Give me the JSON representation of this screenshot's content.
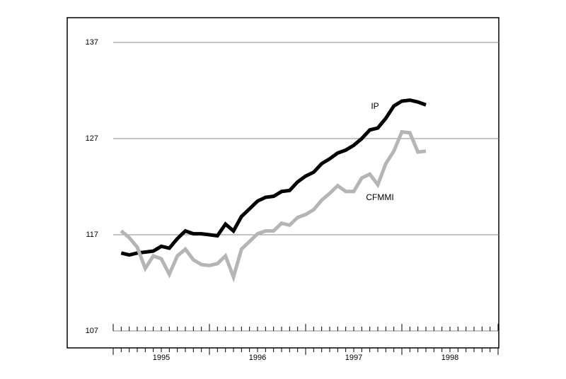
{
  "chart_data": {
    "type": "line",
    "x": [
      1995.083,
      1995.167,
      1995.25,
      1995.333,
      1995.417,
      1995.5,
      1995.583,
      1995.667,
      1995.75,
      1995.833,
      1995.917,
      1996.0,
      1996.083,
      1996.167,
      1996.25,
      1996.333,
      1996.417,
      1996.5,
      1996.583,
      1996.667,
      1996.75,
      1996.833,
      1996.917,
      1997.0,
      1997.083,
      1997.167,
      1997.25,
      1997.333,
      1997.417,
      1997.5,
      1997.583,
      1997.667,
      1997.75,
      1997.833,
      1997.917,
      1998.0,
      1998.083,
      1998.167,
      1998.25
    ],
    "series": [
      {
        "name": "IP",
        "color": "#000000",
        "values": [
          115.1,
          114.9,
          115.1,
          115.2,
          115.3,
          115.8,
          115.6,
          116.6,
          117.4,
          117.1,
          117.1,
          117.0,
          116.9,
          118.1,
          117.4,
          118.9,
          119.7,
          120.5,
          120.9,
          121.0,
          121.5,
          121.6,
          122.5,
          123.1,
          123.5,
          124.4,
          124.9,
          125.5,
          125.8,
          126.3,
          127.0,
          127.9,
          128.1,
          129.1,
          130.4,
          130.9,
          131.0,
          130.8,
          130.5
        ]
      },
      {
        "name": "CFMMI",
        "color": "#b5b5b5",
        "values": [
          117.4,
          116.7,
          115.7,
          113.5,
          114.8,
          114.5,
          112.9,
          114.8,
          115.5,
          114.4,
          113.9,
          113.8,
          114.0,
          114.8,
          112.6,
          115.5,
          116.3,
          117.1,
          117.4,
          117.4,
          118.2,
          118.0,
          118.8,
          119.1,
          119.6,
          120.6,
          121.3,
          122.1,
          121.5,
          121.5,
          122.9,
          123.3,
          122.2,
          124.4,
          125.7,
          127.7,
          127.6,
          125.6,
          125.7
        ]
      }
    ],
    "xlim": [
      1995,
      1999
    ],
    "xticks": [
      {
        "value": 1995.5,
        "label": "1995"
      },
      {
        "value": 1996.5,
        "label": "1996"
      },
      {
        "value": 1997.5,
        "label": "1997"
      },
      {
        "value": 1998.5,
        "label": "1998"
      }
    ],
    "ylim": [
      107,
      137
    ],
    "yticks": [
      107,
      117,
      127,
      137
    ],
    "grid": true
  }
}
